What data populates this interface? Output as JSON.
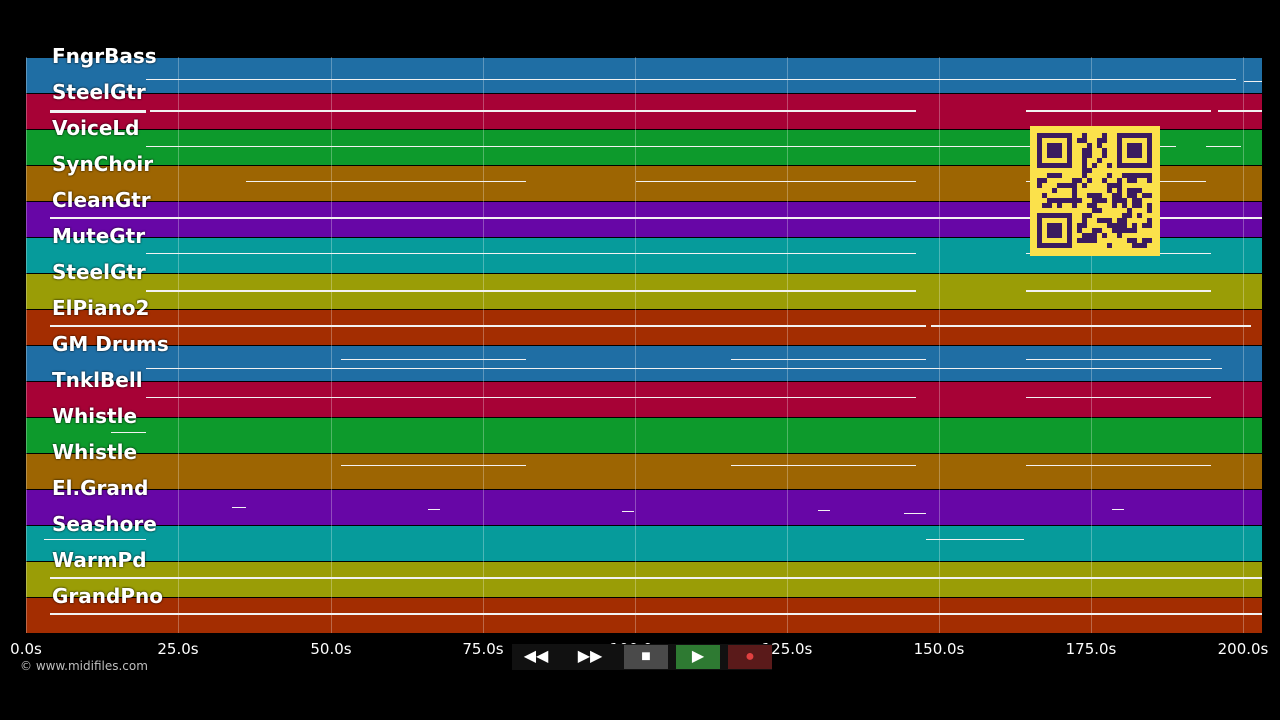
{
  "tracks": [
    {
      "name": "FngrBass",
      "color": "#1f6ea4"
    },
    {
      "name": "SteelGtr",
      "color": "#a70236"
    },
    {
      "name": "VoiceLd",
      "color": "#0d9a2c"
    },
    {
      "name": "SynChoir",
      "color": "#9d6502"
    },
    {
      "name": "CleanGtr",
      "color": "#6706a6"
    },
    {
      "name": "MuteGtr",
      "color": "#069b9b"
    },
    {
      "name": "SteelGtr",
      "color": "#9a9d06"
    },
    {
      "name": "ElPiano2",
      "color": "#a32d01"
    },
    {
      "name": "GM Drums",
      "color": "#1f6ea4"
    },
    {
      "name": "TnklBell",
      "color": "#a70236"
    },
    {
      "name": "Whistle",
      "color": "#0d9a2c"
    },
    {
      "name": "Whistle",
      "color": "#9d6502"
    },
    {
      "name": "El.Grand",
      "color": "#6706a6"
    },
    {
      "name": "Seashore",
      "color": "#069b9b"
    },
    {
      "name": "WarmPd",
      "color": "#9a9d06"
    },
    {
      "name": "GrandPno",
      "color": "#a32d01"
    }
  ],
  "timeline": {
    "ticks": [
      "0.0s",
      "25.0s",
      "50.0s",
      "75.0s",
      "100.0s",
      "125.0s",
      "150.0s",
      "175.0s",
      "200.0s"
    ]
  },
  "credit": "© www.midifiles.com",
  "transport": {
    "rewind_label": "◀◀",
    "forward_label": "▶▶",
    "stop_label": "■",
    "play_label": "▶",
    "record_label": "●",
    "colors": {
      "stop": "#4a4a4a",
      "play": "#2e7a32",
      "record": "#5a1a1a",
      "record_dot": "#e04040"
    }
  },
  "qr_color": "#3b1b5f"
}
